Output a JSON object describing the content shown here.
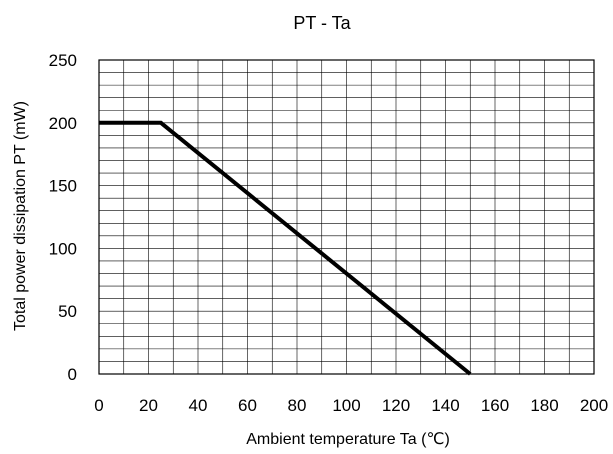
{
  "chart_data": {
    "type": "line",
    "title": "PT - Ta",
    "xlabel": "Ambient temperature Ta (℃)",
    "ylabel": "Total power dissipation PT (mW)",
    "xlim": [
      0,
      200
    ],
    "ylim": [
      0,
      250
    ],
    "x_ticks": [
      0,
      20,
      40,
      60,
      80,
      100,
      120,
      140,
      160,
      180,
      200
    ],
    "y_ticks": [
      0,
      50,
      100,
      150,
      200,
      250
    ],
    "x_minor_step": 10,
    "y_minor_step": 10,
    "grid": true,
    "series": [
      {
        "color": "#000000",
        "points": [
          [
            0,
            200
          ],
          [
            25,
            200
          ],
          [
            150,
            0
          ]
        ]
      }
    ]
  }
}
